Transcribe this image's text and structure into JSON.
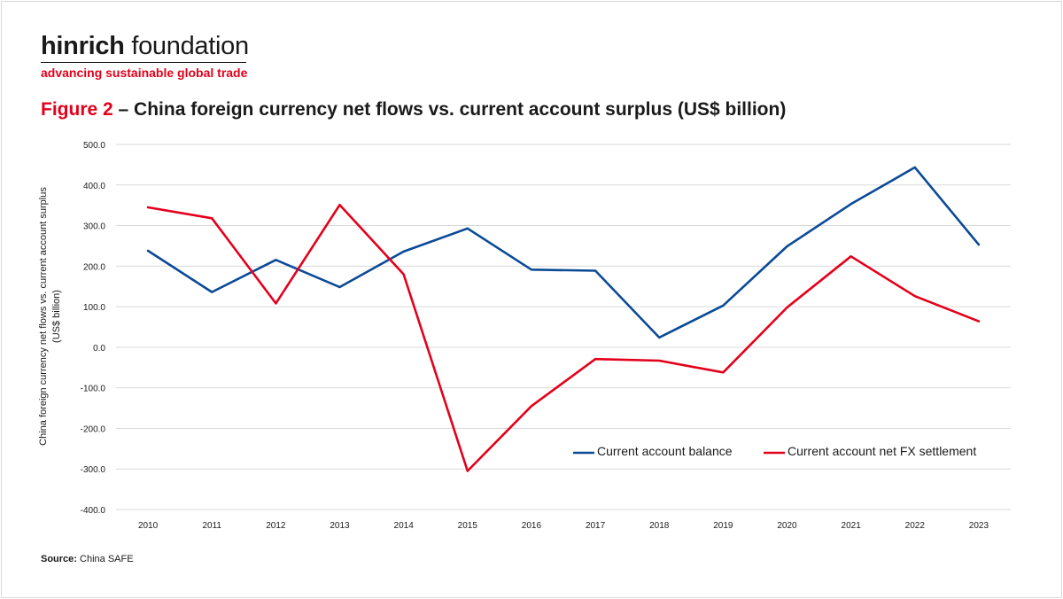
{
  "logo": {
    "name_bold": "hinrich",
    "name_rest": " foundation",
    "tagline": "advancing sustainable global trade"
  },
  "title": {
    "figure_label": "Figure 2",
    "text": " – China foreign currency net flows vs. current account surplus (US$ billion)"
  },
  "source": {
    "label": "Source:",
    "text": " China SAFE"
  },
  "colors": {
    "blue": "#0b4a96",
    "red": "#e3001b",
    "grid": "#d9d9d9",
    "text": "#1a1a1a"
  },
  "chart_data": {
    "type": "line",
    "title": "Figure 2 – China foreign currency net flows vs. current account surplus (US$ billion)",
    "ylabel": "China foreign currency net flows vs. current account surplus (US$ billion)",
    "xlabel": "",
    "x": [
      "2010",
      "2011",
      "2012",
      "2013",
      "2014",
      "2015",
      "2016",
      "2017",
      "2018",
      "2019",
      "2020",
      "2021",
      "2022",
      "2023"
    ],
    "ylim": [
      -400,
      500
    ],
    "yticks": [
      -400,
      -300,
      -200,
      -100,
      0,
      100,
      200,
      300,
      400,
      500
    ],
    "ytick_labels": [
      "-400.0",
      "-300.0",
      "-200.0",
      "-100.0",
      "0.0",
      "100.0",
      "200.0",
      "300.0",
      "400.0",
      "500.0"
    ],
    "grid": true,
    "legend_position": "bottom-right",
    "series": [
      {
        "name": "Current account balance",
        "color": "#0b4a96",
        "values": [
          237.8,
          136.1,
          215.4,
          148.2,
          236.0,
          293.0,
          191.3,
          188.7,
          24.1,
          102.9,
          248.8,
          352.9,
          443.4,
          252.9
        ]
      },
      {
        "name": "Current account net FX settlement",
        "color": "#e3001b",
        "values": [
          345,
          318,
          108,
          351,
          180,
          -305,
          -145,
          -29,
          -33,
          -62,
          98,
          224,
          126,
          64
        ]
      }
    ]
  }
}
